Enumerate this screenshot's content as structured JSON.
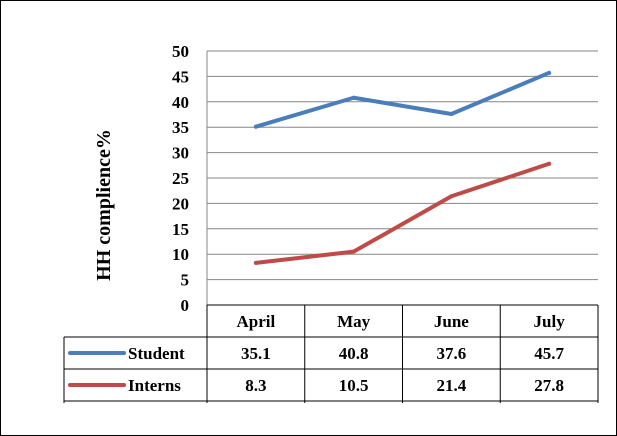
{
  "chart_data": {
    "type": "line",
    "title": "",
    "xlabel": "",
    "ylabel": "HH complience%",
    "ylim": [
      0,
      50
    ],
    "yticks": [
      0,
      5,
      10,
      15,
      20,
      25,
      30,
      35,
      40,
      45,
      50
    ],
    "grid": true,
    "legend": "data-table",
    "categories": [
      "April",
      "May",
      "June",
      "July"
    ],
    "series": [
      {
        "name": "Student",
        "values": [
          35.1,
          40.8,
          37.6,
          45.7
        ],
        "color": "#4A7EBB"
      },
      {
        "name": "Interns",
        "values": [
          8.3,
          10.5,
          21.4,
          27.8
        ],
        "color": "#BE4B48"
      }
    ]
  }
}
